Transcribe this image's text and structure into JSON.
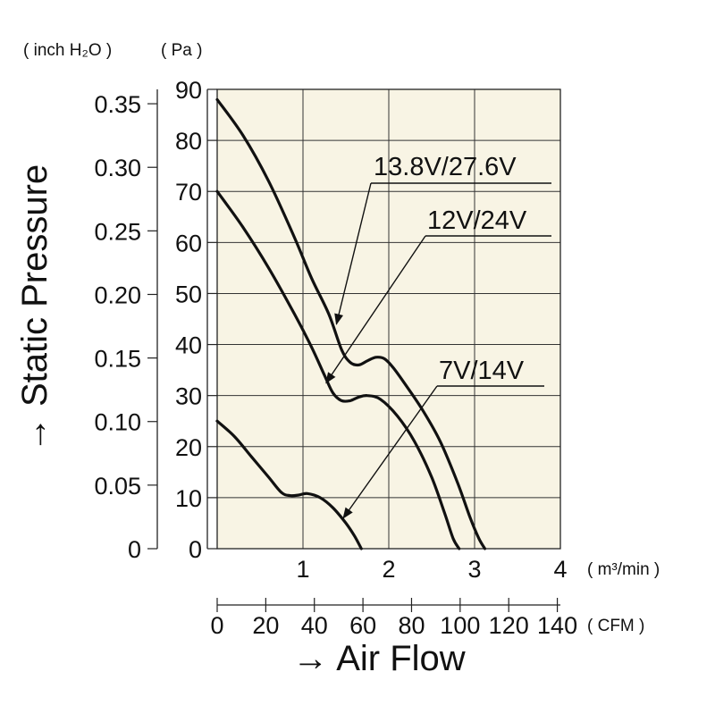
{
  "chart_data": {
    "type": "line",
    "unit_labels": {
      "left_outer": "( inch H₂O )",
      "left_inner": "( Pa )",
      "x_upper": "( m³/min )",
      "x_lower": "( CFM )"
    },
    "ylabel": "→ Static Pressure",
    "xlabel": "→ Air Flow",
    "pa_ticks": [
      "90",
      "80",
      "70",
      "60",
      "50",
      "40",
      "30",
      "20",
      "10",
      "0"
    ],
    "inch_ticks": [
      "0.35",
      "0.30",
      "0.25",
      "0.20",
      "0.15",
      "0.10",
      "0.05",
      "0"
    ],
    "m3_ticks": [
      "1",
      "2",
      "3",
      "4"
    ],
    "cfm_ticks": [
      "0",
      "20",
      "40",
      "60",
      "80",
      "100",
      "120",
      "140"
    ],
    "xlim": [
      0,
      4
    ],
    "ylim": [
      0,
      90
    ],
    "grid": true,
    "series": [
      {
        "name": "13.8V/27.6V",
        "x": [
          0,
          0.3,
          0.6,
          0.9,
          1.1,
          1.3,
          1.45,
          1.55,
          1.65,
          1.75,
          1.85,
          1.95,
          2.05,
          2.2,
          2.4,
          2.6,
          2.8,
          2.95,
          3.05,
          3.12
        ],
        "y": [
          88,
          81,
          72,
          61,
          53,
          46,
          39,
          36.5,
          36,
          36.8,
          37.5,
          37.2,
          35.5,
          32,
          27,
          21,
          13,
          6,
          2,
          0
        ]
      },
      {
        "name": "12V/24V",
        "x": [
          0,
          0.3,
          0.6,
          0.9,
          1.1,
          1.25,
          1.35,
          1.45,
          1.55,
          1.65,
          1.75,
          1.9,
          2.1,
          2.3,
          2.5,
          2.65,
          2.75,
          2.82
        ],
        "y": [
          70,
          63,
          55,
          46,
          39.5,
          34,
          30.5,
          29,
          29,
          29.7,
          30,
          29.3,
          26,
          21,
          14,
          7,
          2,
          0
        ]
      },
      {
        "name": "7V/14V",
        "x": [
          0,
          0.2,
          0.4,
          0.6,
          0.75,
          0.85,
          0.95,
          1.05,
          1.2,
          1.35,
          1.5,
          1.6,
          1.68
        ],
        "y": [
          25,
          22,
          18,
          14,
          11,
          10.4,
          10.5,
          10.8,
          10,
          8,
          5,
          2.5,
          0
        ]
      }
    ]
  }
}
